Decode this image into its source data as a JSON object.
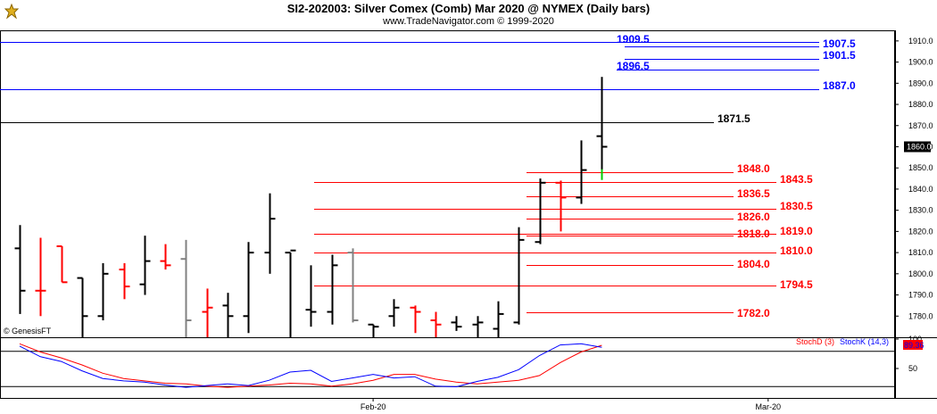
{
  "header": {
    "title": "SI2-202003:  Silver Comex (Comb) Mar 2020 @ NYMEX  (Daily bars)",
    "subtitle": "www.TradeNavigator.com © 1999-2020",
    "logo_icon": "genesis-logo-icon"
  },
  "watermark": "© GenesisFT",
  "indicator_labels": {
    "stochD": "StochD (3)",
    "stochK": "StochK (14,3)",
    "last_stoch": "89.36"
  },
  "colors": {
    "up_bar": "#000000",
    "down_bar": "#ff0000",
    "neutral_bar": "#808080",
    "last_tick": "#00cc00",
    "blue_level": "#0000ff",
    "red_level": "#ff0000",
    "black_level": "#000000",
    "stochD": "#ff0000",
    "stochK": "#0000ff"
  },
  "chart_data": [
    {
      "type": "ohlc",
      "title": "SI2-202003:  Silver Comex (Comb) Mar 2020 @ NYMEX  (Daily bars)",
      "ylim": [
        1770,
        1915
      ],
      "ticks": [
        "1780.0",
        "1790.0",
        "1800.0",
        "1810.0",
        "1820.0",
        "1830.0",
        "1840.0",
        "1850.0",
        "1860.0",
        "1870.0",
        "1880.0",
        "1890.0",
        "1900.0",
        "1910.0"
      ],
      "tick_values": [
        1780,
        1790,
        1800,
        1810,
        1820,
        1830,
        1840,
        1850,
        1860,
        1870,
        1880,
        1890,
        1900,
        1910
      ],
      "last_price": "1860.0",
      "x_labels": [
        {
          "label": "Feb-20",
          "bar": 17
        },
        {
          "label": "Mar-20",
          "bar": 36
        }
      ],
      "bars": [
        {
          "o": 1812,
          "h": 1823,
          "l": 1781,
          "c": 1792,
          "color": "up"
        },
        {
          "o": 1792,
          "h": 1817,
          "l": 1780,
          "c": 1792,
          "color": "down"
        },
        {
          "o": 1813,
          "h": 1813,
          "l": 1796,
          "c": 1796,
          "color": "down"
        },
        {
          "o": 1798,
          "h": 1798,
          "l": 1766,
          "c": 1780,
          "color": "up"
        },
        {
          "o": 1780,
          "h": 1805,
          "l": 1778,
          "c": 1800,
          "color": "up"
        },
        {
          "o": 1802,
          "h": 1805,
          "l": 1788,
          "c": 1794,
          "color": "down"
        },
        {
          "o": 1795,
          "h": 1818,
          "l": 1790,
          "c": 1806,
          "color": "up"
        },
        {
          "o": 1806,
          "h": 1814,
          "l": 1802,
          "c": 1804,
          "color": "down"
        },
        {
          "o": 1807,
          "h": 1816,
          "l": 1770,
          "c": 1778,
          "color": "neutral"
        },
        {
          "o": 1782,
          "h": 1793,
          "l": 1770,
          "c": 1784,
          "color": "down"
        },
        {
          "o": 1785,
          "h": 1791,
          "l": 1770,
          "c": 1780,
          "color": "up"
        },
        {
          "o": 1780,
          "h": 1815,
          "l": 1772,
          "c": 1810,
          "color": "up"
        },
        {
          "o": 1810,
          "h": 1838,
          "l": 1800,
          "c": 1826,
          "color": "up"
        },
        {
          "o": 1810,
          "h": 1810,
          "l": 1770,
          "c": 1811,
          "color": "up"
        },
        {
          "o": 1783,
          "h": 1804,
          "l": 1775,
          "c": 1782,
          "color": "up"
        },
        {
          "o": 1782,
          "h": 1809,
          "l": 1776,
          "c": 1804,
          "color": "up"
        },
        {
          "o": 1810,
          "h": 1812,
          "l": 1777,
          "c": 1778,
          "color": "neutral"
        },
        {
          "o": 1776,
          "h": 1776,
          "l": 1770,
          "c": 1775,
          "color": "up"
        },
        {
          "o": 1780,
          "h": 1788,
          "l": 1775,
          "c": 1784,
          "color": "up"
        },
        {
          "o": 1784,
          "h": 1785,
          "l": 1772,
          "c": 1782,
          "color": "down"
        },
        {
          "o": 1778,
          "h": 1782,
          "l": 1770,
          "c": 1776,
          "color": "down"
        },
        {
          "o": 1777,
          "h": 1780,
          "l": 1773,
          "c": 1775,
          "color": "up"
        },
        {
          "o": 1776,
          "h": 1780,
          "l": 1770,
          "c": 1777,
          "color": "up"
        },
        {
          "o": 1774,
          "h": 1787,
          "l": 1770,
          "c": 1781,
          "color": "up"
        },
        {
          "o": 1777,
          "h": 1822,
          "l": 1776,
          "c": 1816,
          "color": "up"
        },
        {
          "o": 1815,
          "h": 1845,
          "l": 1814,
          "c": 1843,
          "color": "up"
        },
        {
          "o": 1843,
          "h": 1844,
          "l": 1820,
          "c": 1836,
          "color": "down"
        },
        {
          "o": 1836,
          "h": 1863,
          "l": 1833,
          "c": 1849,
          "color": "up"
        },
        {
          "o": 1865,
          "h": 1893,
          "l": 1846,
          "c": 1860,
          "color": "up"
        }
      ],
      "levels": [
        {
          "value": 1909.5,
          "label": "1909.5",
          "color": "blue"
        },
        {
          "value": 1907.5,
          "label": "1907.5",
          "color": "blue"
        },
        {
          "value": 1901.5,
          "label": "1901.5",
          "color": "blue"
        },
        {
          "value": 1896.5,
          "label": "1896.5",
          "color": "blue"
        },
        {
          "value": 1887.0,
          "label": "1887.0",
          "color": "blue"
        },
        {
          "value": 1871.5,
          "label": "1871.5",
          "color": "black"
        },
        {
          "value": 1848.0,
          "label": "1848.0",
          "color": "red"
        },
        {
          "value": 1843.5,
          "label": "1843.5",
          "color": "red"
        },
        {
          "value": 1836.5,
          "label": "1836.5",
          "color": "red"
        },
        {
          "value": 1830.5,
          "label": "1830.5",
          "color": "red"
        },
        {
          "value": 1826.0,
          "label": "1826.0",
          "color": "red"
        },
        {
          "value": 1819.0,
          "label": "1819.0",
          "color": "red"
        },
        {
          "value": 1818.0,
          "label": "1818.0",
          "color": "red"
        },
        {
          "value": 1810.0,
          "label": "1810.0",
          "color": "red"
        },
        {
          "value": 1804.0,
          "label": "1804.0",
          "color": "red"
        },
        {
          "value": 1794.5,
          "label": "1794.5",
          "color": "red"
        },
        {
          "value": 1782.0,
          "label": "1782.0",
          "color": "red"
        }
      ]
    },
    {
      "type": "line",
      "title": "",
      "ylim": [
        0,
        100
      ],
      "ticks": [
        "100",
        "50"
      ],
      "tick_values": [
        100,
        50
      ],
      "series": [
        {
          "name": "StochD (3)",
          "color": "#ff0000",
          "values": [
            92,
            78,
            68,
            56,
            42,
            33,
            29,
            25,
            24,
            20,
            18,
            20,
            22,
            25,
            24,
            20,
            24,
            30,
            40,
            40,
            32,
            27,
            24,
            27,
            30,
            38,
            60,
            78,
            89.36
          ]
        },
        {
          "name": "StochK (14,3)",
          "color": "#0000ff",
          "values": [
            88,
            70,
            62,
            46,
            33,
            29,
            27,
            22,
            18,
            21,
            24,
            21,
            30,
            44,
            47,
            28,
            34,
            40,
            34,
            36,
            20,
            19,
            28,
            35,
            48,
            72,
            90,
            92,
            86
          ]
        }
      ]
    }
  ]
}
